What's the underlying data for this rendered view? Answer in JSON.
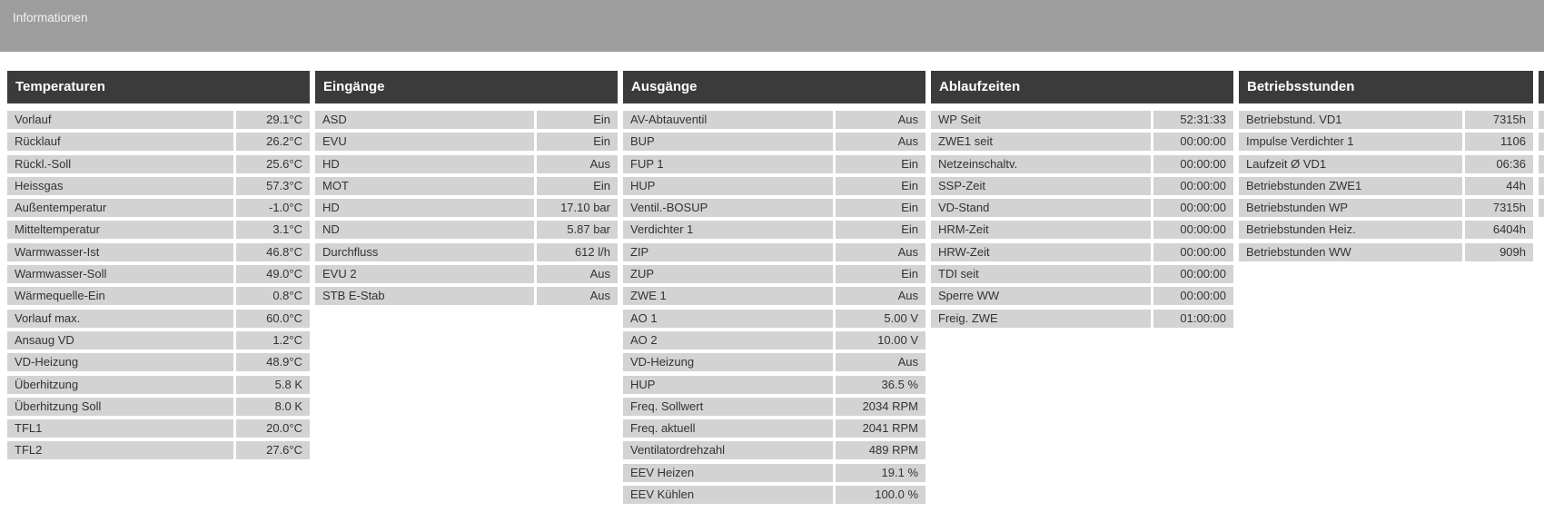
{
  "banner": {
    "title": "Informationen"
  },
  "colors": {
    "banner_bg": "#9d9d9d",
    "table_header_bg": "#3b3b3b",
    "table_header_text": "#ffffff",
    "row_bg": "#d3d3d3",
    "row_text": "#333333",
    "page_bg": "#ffffff"
  },
  "tables": [
    {
      "title": "Temperaturen",
      "rows": [
        {
          "label": "Vorlauf",
          "value": "29.1°C"
        },
        {
          "label": "Rücklauf",
          "value": "26.2°C"
        },
        {
          "label": "Rückl.-Soll",
          "value": "25.6°C"
        },
        {
          "label": "Heissgas",
          "value": "57.3°C"
        },
        {
          "label": "Außentemperatur",
          "value": "-1.0°C"
        },
        {
          "label": "Mitteltemperatur",
          "value": "3.1°C"
        },
        {
          "label": "Warmwasser-Ist",
          "value": "46.8°C"
        },
        {
          "label": "Warmwasser-Soll",
          "value": "49.0°C"
        },
        {
          "label": "Wärmequelle-Ein",
          "value": "0.8°C"
        },
        {
          "label": "Vorlauf max.",
          "value": "60.0°C"
        },
        {
          "label": "Ansaug VD",
          "value": "1.2°C"
        },
        {
          "label": "VD-Heizung",
          "value": "48.9°C"
        },
        {
          "label": "Überhitzung",
          "value": "5.8 K"
        },
        {
          "label": "Überhitzung Soll",
          "value": "8.0 K"
        },
        {
          "label": "TFL1",
          "value": "20.0°C"
        },
        {
          "label": "TFL2",
          "value": "27.6°C"
        }
      ]
    },
    {
      "title": "Eingänge",
      "rows": [
        {
          "label": "ASD",
          "value": "Ein"
        },
        {
          "label": "EVU",
          "value": "Ein"
        },
        {
          "label": "HD",
          "value": "Aus"
        },
        {
          "label": "MOT",
          "value": "Ein"
        },
        {
          "label": "HD",
          "value": "17.10 bar"
        },
        {
          "label": "ND",
          "value": "5.87 bar"
        },
        {
          "label": "Durchfluss",
          "value": "612 l/h"
        },
        {
          "label": "EVU 2",
          "value": "Aus"
        },
        {
          "label": "STB E-Stab",
          "value": "Aus"
        }
      ]
    },
    {
      "title": "Ausgänge",
      "rows": [
        {
          "label": "AV-Abtauventil",
          "value": "Aus"
        },
        {
          "label": "BUP",
          "value": "Aus"
        },
        {
          "label": "FUP 1",
          "value": "Ein"
        },
        {
          "label": "HUP",
          "value": "Ein"
        },
        {
          "label": "Ventil.-BOSUP",
          "value": "Ein"
        },
        {
          "label": "Verdichter 1",
          "value": "Ein"
        },
        {
          "label": "ZIP",
          "value": "Aus"
        },
        {
          "label": "ZUP",
          "value": "Ein"
        },
        {
          "label": "ZWE 1",
          "value": "Aus"
        },
        {
          "label": "AO 1",
          "value": "5.00 V"
        },
        {
          "label": "AO 2",
          "value": "10.00 V"
        },
        {
          "label": "VD-Heizung",
          "value": "Aus"
        },
        {
          "label": "HUP",
          "value": "36.5 %"
        },
        {
          "label": "Freq. Sollwert",
          "value": "2034 RPM"
        },
        {
          "label": "Freq. aktuell",
          "value": "2041 RPM"
        },
        {
          "label": "Ventilatordrehzahl",
          "value": "489 RPM"
        },
        {
          "label": "EEV Heizen",
          "value": "19.1 %"
        },
        {
          "label": "EEV Kühlen",
          "value": "100.0 %"
        }
      ]
    },
    {
      "title": "Ablaufzeiten",
      "rows": [
        {
          "label": "WP Seit",
          "value": "52:31:33"
        },
        {
          "label": "ZWE1 seit",
          "value": "00:00:00"
        },
        {
          "label": "Netzeinschaltv.",
          "value": "00:00:00"
        },
        {
          "label": "SSP-Zeit",
          "value": "00:00:00"
        },
        {
          "label": "VD-Stand",
          "value": "00:00:00"
        },
        {
          "label": "HRM-Zeit",
          "value": "00:00:00"
        },
        {
          "label": "HRW-Zeit",
          "value": "00:00:00"
        },
        {
          "label": "TDI seit",
          "value": "00:00:00"
        },
        {
          "label": "Sperre WW",
          "value": "00:00:00"
        },
        {
          "label": "Freig. ZWE",
          "value": "01:00:00"
        }
      ]
    },
    {
      "title": "Betriebsstunden",
      "rows": [
        {
          "label": "Betriebstund. VD1",
          "value": "7315h"
        },
        {
          "label": "Impulse Verdichter 1",
          "value": "1106"
        },
        {
          "label": "Laufzeit Ø VD1",
          "value": "06:36"
        },
        {
          "label": "Betriebstunden ZWE1",
          "value": "44h"
        },
        {
          "label": "Betriebstunden WP",
          "value": "7315h"
        },
        {
          "label": "Betriebstunden Heiz.",
          "value": "6404h"
        },
        {
          "label": "Betriebstunden WW",
          "value": "909h"
        }
      ]
    }
  ],
  "partial_table": {
    "note": "sixth table cut off at right screen edge, only a few pixels visible",
    "visible_row_count": 5
  }
}
